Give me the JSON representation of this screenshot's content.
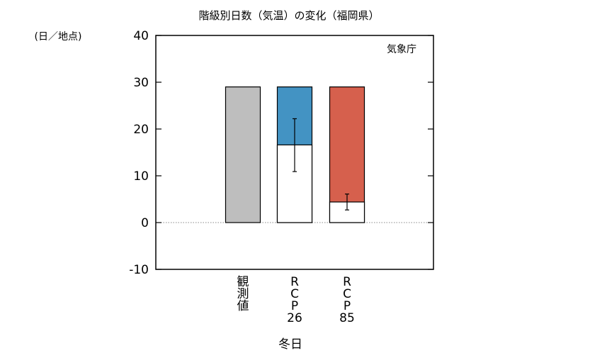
{
  "chart_data": {
    "type": "bar",
    "title": "階級別日数（気温）の変化（福岡県）",
    "unit_label": "(日／地点)",
    "source_label": "気象庁",
    "xlabel": "冬日",
    "ylim": [
      -10,
      40
    ],
    "yticks": [
      -10,
      0,
      10,
      20,
      30,
      40
    ],
    "grid": false,
    "zero_line": "dotted",
    "categories": [
      {
        "key": "obs",
        "label": "観測値",
        "label_chars": [
          "観",
          "測",
          "値"
        ]
      },
      {
        "key": "rcp26",
        "label": "RCP26",
        "label_chars": [
          "R",
          "C",
          "P",
          "26"
        ]
      },
      {
        "key": "rcp85",
        "label": "RCP85",
        "label_chars": [
          "R",
          "C",
          "P",
          "85"
        ]
      }
    ],
    "series": [
      {
        "key": "obs",
        "value": 29.0,
        "color": "#bebebe"
      },
      {
        "key": "rcp26",
        "present": 29.0,
        "future": 16.6,
        "error": [
          10.9,
          22.2
        ],
        "color": "#4393c3"
      },
      {
        "key": "rcp85",
        "present": 29.0,
        "future": 4.4,
        "error": [
          2.7,
          6.1
        ],
        "color": "#d6604d"
      }
    ]
  }
}
